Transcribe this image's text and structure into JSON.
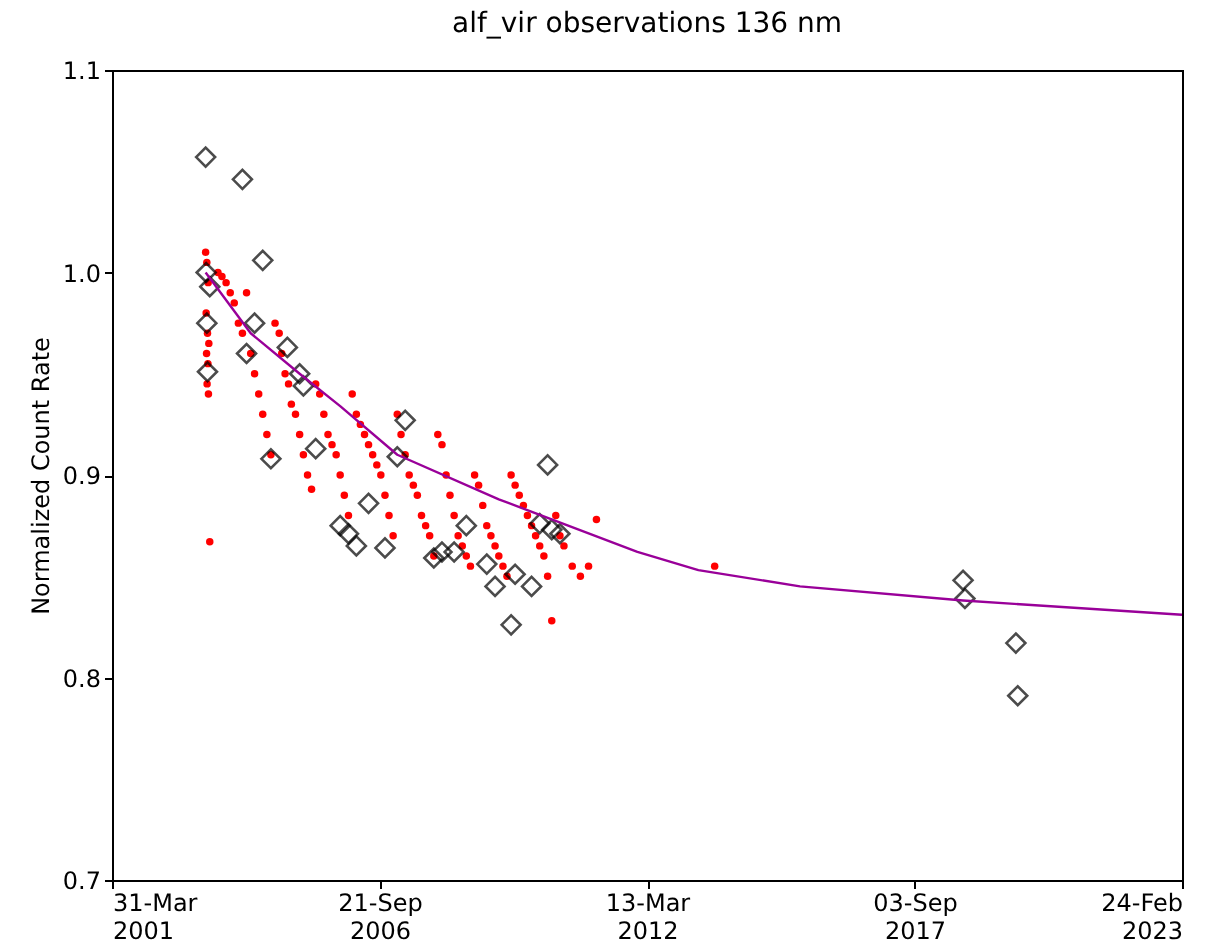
{
  "chart_data": {
    "type": "scatter",
    "title": "alf_vir observations 136 nm",
    "ylabel": "Normalized Count Rate",
    "xlim": [
      "2001-03-31",
      "2023-02-24"
    ],
    "xticks": [
      {
        "value": "2001-03-31",
        "label": "31-Mar 2001"
      },
      {
        "value": "2006-09-21",
        "label": "21-Sep 2006"
      },
      {
        "value": "2012-03-13",
        "label": "13-Mar 2012"
      },
      {
        "value": "2017-09-03",
        "label": "03-Sep 2017"
      },
      {
        "value": "2023-02-24",
        "label": "24-Feb 2023"
      }
    ],
    "ylim": [
      0.7,
      1.1
    ],
    "yticks": [
      0.7,
      0.8,
      0.9,
      {
        "value": 1.0,
        "label": "1.0"
      },
      1.1
    ],
    "grid": false,
    "series": [
      {
        "type": "scatter",
        "marker": "circle",
        "color": "#ff0000",
        "x": [
          "2003-03-01",
          "2003-03-10",
          "2003-03-20",
          "2003-03-05",
          "2003-03-15",
          "2003-03-25",
          "2003-03-08",
          "2003-03-18",
          "2003-03-12",
          "2003-03-22",
          "2003-04-01",
          "2003-06-01",
          "2003-07-01",
          "2003-08-01",
          "2003-09-01",
          "2003-10-01",
          "2003-11-01",
          "2003-12-01",
          "2004-01-01",
          "2004-02-01",
          "2004-03-01",
          "2004-04-01",
          "2004-05-01",
          "2004-06-01",
          "2004-07-01",
          "2004-08-01",
          "2004-09-01",
          "2004-09-20",
          "2004-10-15",
          "2004-11-10",
          "2004-12-01",
          "2005-01-01",
          "2005-02-01",
          "2005-03-01",
          "2005-04-01",
          "2005-05-01",
          "2005-06-01",
          "2005-07-01",
          "2005-08-01",
          "2005-09-01",
          "2005-10-01",
          "2005-11-01",
          "2005-12-01",
          "2006-01-01",
          "2006-02-01",
          "2006-03-01",
          "2006-04-01",
          "2006-05-01",
          "2006-06-01",
          "2006-07-01",
          "2006-08-01",
          "2006-09-01",
          "2006-10-01",
          "2006-11-01",
          "2006-12-01",
          "2007-01-01",
          "2007-02-01",
          "2007-03-01",
          "2007-04-01",
          "2007-05-01",
          "2007-06-01",
          "2007-07-01",
          "2007-08-01",
          "2007-09-01",
          "2007-10-01",
          "2007-11-01",
          "2007-12-01",
          "2008-01-01",
          "2008-02-01",
          "2008-03-01",
          "2008-04-01",
          "2008-05-01",
          "2008-06-01",
          "2008-07-01",
          "2008-08-01",
          "2008-09-01",
          "2008-10-01",
          "2008-11-01",
          "2008-12-01",
          "2009-01-01",
          "2009-02-01",
          "2009-03-01",
          "2009-04-01",
          "2009-05-01",
          "2009-06-01",
          "2009-07-01",
          "2009-08-01",
          "2009-09-01",
          "2009-10-01",
          "2009-11-01",
          "2009-12-01",
          "2010-01-01",
          "2010-02-01",
          "2010-03-01",
          "2010-04-01",
          "2010-05-01",
          "2010-06-01",
          "2010-07-01",
          "2010-09-01",
          "2010-11-01",
          "2011-01-01",
          "2011-03-01",
          "2013-08-01"
        ],
        "values": [
          1.01,
          1.005,
          0.995,
          0.98,
          0.97,
          0.965,
          0.96,
          0.955,
          0.945,
          0.94,
          0.867,
          1.0,
          0.998,
          0.995,
          0.99,
          0.985,
          0.975,
          0.97,
          0.99,
          0.96,
          0.95,
          0.94,
          0.93,
          0.92,
          0.91,
          0.975,
          0.97,
          0.96,
          0.95,
          0.945,
          0.935,
          0.93,
          0.92,
          0.91,
          0.9,
          0.893,
          0.945,
          0.94,
          0.93,
          0.92,
          0.915,
          0.91,
          0.9,
          0.89,
          0.88,
          0.94,
          0.93,
          0.925,
          0.92,
          0.915,
          0.91,
          0.905,
          0.9,
          0.89,
          0.88,
          0.87,
          0.93,
          0.92,
          0.91,
          0.9,
          0.895,
          0.89,
          0.88,
          0.875,
          0.87,
          0.86,
          0.92,
          0.915,
          0.9,
          0.89,
          0.88,
          0.87,
          0.865,
          0.86,
          0.855,
          0.9,
          0.895,
          0.885,
          0.875,
          0.87,
          0.865,
          0.86,
          0.855,
          0.85,
          0.9,
          0.895,
          0.89,
          0.885,
          0.88,
          0.875,
          0.87,
          0.865,
          0.86,
          0.85,
          0.828,
          0.88,
          0.87,
          0.865,
          0.855,
          0.85,
          0.855,
          0.878,
          0.855
        ]
      },
      {
        "type": "scatter",
        "marker": "diamond",
        "color": "#000000",
        "x": [
          "2003-03-01",
          "2003-03-05",
          "2003-04-01",
          "2003-03-10",
          "2003-03-15",
          "2003-12-01",
          "2004-01-01",
          "2004-03-01",
          "2004-05-01",
          "2004-07-01",
          "2004-11-01",
          "2005-02-01",
          "2005-03-01",
          "2005-06-01",
          "2005-12-01",
          "2006-02-01",
          "2006-04-01",
          "2006-07-01",
          "2006-11-01",
          "2007-02-01",
          "2007-04-01",
          "2007-11-01",
          "2008-01-01",
          "2008-04-01",
          "2008-07-01",
          "2008-12-01",
          "2009-02-01",
          "2009-06-01",
          "2009-07-01",
          "2009-11-01",
          "2010-01-01",
          "2010-03-01",
          "2010-04-01",
          "2010-06-01",
          "2018-09-01",
          "2018-09-15",
          "2019-10-01",
          "2019-10-15"
        ],
        "values": [
          1.057,
          1.0,
          0.993,
          0.975,
          0.951,
          1.046,
          0.96,
          0.975,
          1.006,
          0.908,
          0.963,
          0.95,
          0.944,
          0.913,
          0.875,
          0.871,
          0.865,
          0.886,
          0.864,
          0.909,
          0.927,
          0.859,
          0.862,
          0.862,
          0.875,
          0.856,
          0.845,
          0.826,
          0.851,
          0.845,
          0.876,
          0.905,
          0.873,
          0.871,
          0.848,
          0.839,
          0.817,
          0.791
        ]
      },
      {
        "type": "line",
        "color": "#990099",
        "x": [
          "2003-03-01",
          "2004-02-01",
          "2005-02-01",
          "2005-12-01",
          "2007-02-01",
          "2009-03-01",
          "2012-01-01",
          "2013-04-01",
          "2015-05-01",
          "2018-09-01",
          "2023-02-24"
        ],
        "values": [
          1.0,
          0.97,
          0.95,
          0.934,
          0.91,
          0.888,
          0.862,
          0.853,
          0.845,
          0.838,
          0.831
        ]
      }
    ]
  }
}
